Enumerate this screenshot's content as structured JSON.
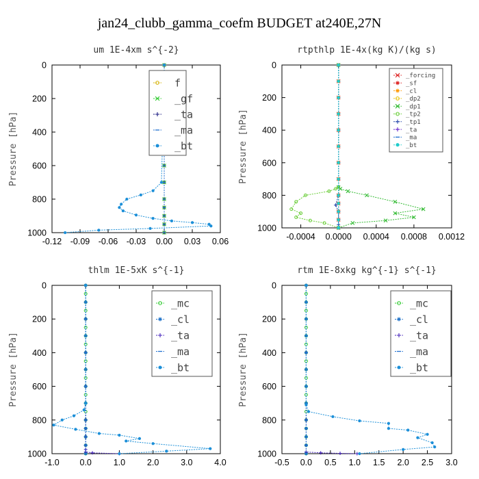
{
  "figure_title": "jan24_clubb_gamma_coefm  BUDGET at240E,27N",
  "chart_data": [
    {
      "type": "line",
      "title": "um   1E-4xm s^{-2}",
      "ylabel": "Pressure [hPa]",
      "xlim": [
        -0.12,
        0.06
      ],
      "xticks": [
        -0.12,
        -0.09,
        -0.06,
        -0.03,
        0.0,
        0.03,
        0.06
      ],
      "xtick_labels": [
        "-0.12",
        "-0.09",
        "-0.06",
        "-0.03",
        "0.00",
        "0.03",
        "0.06"
      ],
      "ylim": [
        1000,
        0
      ],
      "yticks": [
        0,
        200,
        400,
        600,
        800,
        1000
      ],
      "ytick_labels": [
        "0",
        "200",
        "400",
        "600",
        "800",
        "1000"
      ],
      "legend": {
        "placement": "top-right",
        "font": 15,
        "entries": [
          "f",
          "_gf",
          "_ta",
          "_ma",
          "_bt"
        ]
      },
      "series": [
        {
          "name": "f",
          "color": "#d4b000",
          "marker": "circle",
          "x": [
            0,
            0,
            0,
            0,
            0,
            0,
            0,
            0,
            0,
            0,
            0,
            0,
            0
          ],
          "y": [
            0,
            100,
            200,
            300,
            400,
            500,
            600,
            700,
            800,
            850,
            900,
            950,
            1000
          ]
        },
        {
          "name": "_gf",
          "color": "#33cc33",
          "marker": "x",
          "x": [
            0,
            0,
            0,
            0,
            0,
            0,
            0,
            0,
            0,
            0,
            0,
            0,
            0
          ],
          "y": [
            0,
            100,
            200,
            300,
            400,
            500,
            600,
            700,
            800,
            850,
            900,
            950,
            1000
          ]
        },
        {
          "name": "_ta",
          "color": "#1a1a80",
          "marker": "plus",
          "x": [
            0,
            0,
            0,
            0,
            0,
            0,
            0,
            0,
            0,
            0,
            0,
            0,
            0
          ],
          "y": [
            0,
            100,
            200,
            300,
            400,
            500,
            600,
            700,
            800,
            850,
            900,
            950,
            1000
          ]
        },
        {
          "name": "_ma",
          "color": "#1f6fd0",
          "marker": "dash",
          "x": [
            0,
            0,
            0,
            0,
            0,
            0,
            0,
            0,
            0,
            0,
            0,
            0,
            0
          ],
          "y": [
            0,
            100,
            200,
            300,
            400,
            500,
            600,
            700,
            800,
            850,
            900,
            950,
            1000
          ]
        },
        {
          "name": "_bt",
          "color": "#1c8fd8",
          "marker": "dot",
          "x": [
            0,
            0,
            0,
            -0.001,
            -0.002,
            -0.003,
            -0.012,
            -0.025,
            -0.04,
            -0.046,
            -0.048,
            -0.044,
            -0.03,
            -0.012,
            0.008,
            0.03,
            0.048,
            0.05,
            -0.015,
            -0.07,
            -0.106
          ],
          "y": [
            0,
            100,
            140,
            300,
            500,
            700,
            750,
            775,
            800,
            830,
            850,
            870,
            895,
            915,
            930,
            940,
            950,
            960,
            975,
            985,
            1000
          ]
        }
      ]
    },
    {
      "type": "line",
      "title": "rtpthlp   1E-4x(kg K)/(kg s)",
      "ylabel": "Pressure [hPa]",
      "xlim": [
        -0.0006,
        0.0012
      ],
      "xticks": [
        -0.0004,
        0.0,
        0.0004,
        0.0008,
        0.0012
      ],
      "xtick_labels": [
        "-0.0004",
        "0.0000",
        "0.0004",
        "0.0008",
        "0.0012"
      ],
      "ylim": [
        1000,
        0
      ],
      "yticks": [
        0,
        200,
        400,
        600,
        800,
        1000
      ],
      "ytick_labels": [
        "0",
        "200",
        "400",
        "600",
        "800",
        "1000"
      ],
      "legend": {
        "placement": "top-right",
        "font": 9,
        "entries": [
          "_forcing",
          "_sf",
          "_cl",
          "_dp2",
          "_dp1",
          "_tp2",
          "_tp1",
          "_ta",
          "_ma",
          "_bt"
        ]
      },
      "series": [
        {
          "name": "_forcing",
          "color": "#dd2222",
          "marker": "x",
          "x": [
            0,
            0,
            0,
            0,
            0,
            0,
            0,
            0,
            0,
            0,
            0,
            0,
            0
          ],
          "y": [
            0,
            100,
            200,
            300,
            400,
            500,
            600,
            700,
            800,
            850,
            900,
            950,
            1000
          ]
        },
        {
          "name": "_sf",
          "color": "#dd2222",
          "marker": "star",
          "x": [
            0,
            0,
            0,
            0,
            0,
            0,
            0,
            0,
            0,
            0,
            0,
            0,
            0
          ],
          "y": [
            0,
            100,
            200,
            300,
            400,
            500,
            600,
            700,
            800,
            850,
            900,
            950,
            1000
          ]
        },
        {
          "name": "_cl",
          "color": "#ff9900",
          "marker": "star",
          "x": [
            0,
            0,
            0,
            0,
            0,
            0,
            0,
            0,
            0,
            0,
            0,
            0,
            0
          ],
          "y": [
            0,
            100,
            200,
            300,
            400,
            500,
            600,
            700,
            800,
            850,
            900,
            950,
            1000
          ]
        },
        {
          "name": "_dp2",
          "color": "#e6c000",
          "marker": "circle",
          "x": [
            0,
            0,
            0,
            0,
            0,
            0,
            0,
            0,
            0,
            0,
            0,
            0,
            0
          ],
          "y": [
            0,
            100,
            200,
            300,
            400,
            500,
            600,
            700,
            800,
            850,
            900,
            950,
            1000
          ]
        },
        {
          "name": "_dp1",
          "color": "#33bb33",
          "marker": "x",
          "x": [
            0,
            0,
            2e-05,
            0.0001,
            0.0003,
            0.0006,
            0.0009,
            0.0006,
            0.0008,
            0.0005,
            0.00015,
            0.0
          ],
          "y": [
            0,
            750,
            760,
            775,
            800,
            840,
            885,
            910,
            935,
            955,
            970,
            1000
          ]
        },
        {
          "name": "_tp2",
          "color": "#66cc33",
          "marker": "circle",
          "x": [
            0,
            0,
            -3e-05,
            -0.0001,
            -0.00035,
            -0.00045,
            -0.0005,
            -0.0004,
            -0.00045,
            -0.0003,
            -0.00015,
            0.0
          ],
          "y": [
            0,
            750,
            760,
            775,
            800,
            840,
            885,
            910,
            935,
            955,
            970,
            1000
          ]
        },
        {
          "name": "_tp1",
          "color": "#2244aa",
          "marker": "plus",
          "x": [
            0,
            0,
            0,
            0,
            0,
            -3e-05,
            0,
            0,
            0,
            0
          ],
          "y": [
            0,
            200,
            400,
            600,
            800,
            860,
            900,
            950,
            980,
            1000
          ]
        },
        {
          "name": "_ta",
          "color": "#6622cc",
          "marker": "plus",
          "x": [
            0,
            0,
            0,
            0,
            0,
            0,
            0,
            0,
            0,
            0,
            0,
            0,
            0
          ],
          "y": [
            0,
            100,
            200,
            300,
            400,
            500,
            600,
            700,
            800,
            850,
            900,
            950,
            1000
          ]
        },
        {
          "name": "_ma",
          "color": "#1f6fd0",
          "marker": "dash",
          "x": [
            0,
            0,
            0,
            0,
            0,
            0,
            0,
            0,
            0,
            0,
            0,
            0,
            0
          ],
          "y": [
            0,
            100,
            200,
            300,
            400,
            500,
            600,
            700,
            800,
            850,
            900,
            950,
            1000
          ]
        },
        {
          "name": "_bt",
          "color": "#22cccc",
          "marker": "dot",
          "x": [
            0,
            0,
            0,
            0,
            0,
            0,
            0,
            0,
            0,
            0,
            0,
            0,
            0
          ],
          "y": [
            0,
            100,
            200,
            300,
            400,
            500,
            600,
            700,
            800,
            850,
            900,
            950,
            1000
          ]
        }
      ]
    },
    {
      "type": "line",
      "title": "thlm   1E-5xK s^{-1}",
      "ylabel": "Pressure [hPa]",
      "xlim": [
        -1.0,
        4.0
      ],
      "xticks": [
        -1.0,
        0.0,
        1.0,
        2.0,
        3.0,
        4.0
      ],
      "xtick_labels": [
        "-1.0",
        "0.0",
        "1.0",
        "2.0",
        "3.0",
        "4.0"
      ],
      "ylim": [
        1000,
        0
      ],
      "yticks": [
        0,
        200,
        400,
        600,
        800,
        1000
      ],
      "ytick_labels": [
        "0",
        "200",
        "400",
        "600",
        "800",
        "1000"
      ],
      "legend": {
        "placement": "top-right",
        "font": 15,
        "entries": [
          "_mc",
          "_cl",
          "_ta",
          "_ma",
          "_bt"
        ]
      },
      "series": [
        {
          "name": "_mc",
          "color": "#33cc33",
          "marker": "circle",
          "x": [
            0,
            0,
            0,
            0,
            0,
            0,
            0,
            0,
            0,
            0,
            0,
            0,
            0,
            0,
            0,
            0,
            0,
            0,
            0,
            0,
            0
          ],
          "y": [
            0,
            50,
            100,
            150,
            200,
            250,
            300,
            350,
            400,
            450,
            500,
            550,
            600,
            650,
            700,
            750,
            800,
            850,
            900,
            950,
            1000
          ]
        },
        {
          "name": "_cl",
          "color": "#1c70c8",
          "marker": "star",
          "x": [
            0,
            0,
            0,
            0,
            0,
            0,
            0,
            0,
            0,
            0,
            0,
            0,
            0
          ],
          "y": [
            0,
            100,
            200,
            300,
            400,
            500,
            600,
            700,
            800,
            850,
            900,
            950,
            1000
          ]
        },
        {
          "name": "_ta",
          "color": "#4422bb",
          "marker": "plus",
          "x": [
            0,
            0,
            0,
            0,
            0,
            0,
            0,
            0,
            0,
            0,
            0.2,
            1.0
          ],
          "y": [
            0,
            200,
            400,
            600,
            800,
            850,
            900,
            950,
            975,
            990,
            995,
            1000
          ]
        },
        {
          "name": "_ma",
          "color": "#1f6fd0",
          "marker": "dash",
          "x": [
            0,
            0,
            0,
            0,
            0,
            0,
            0,
            0,
            0,
            0,
            0,
            0,
            0
          ],
          "y": [
            0,
            100,
            200,
            300,
            400,
            500,
            600,
            700,
            800,
            850,
            900,
            950,
            1000
          ]
        },
        {
          "name": "_bt",
          "color": "#1c8fd8",
          "marker": "dot",
          "x": [
            0,
            0,
            -0.05,
            -0.35,
            -0.7,
            -0.95,
            -0.3,
            0.4,
            1.0,
            1.6,
            1.2,
            2.0,
            3.7,
            2.4,
            1.0
          ],
          "y": [
            0,
            700,
            740,
            775,
            800,
            830,
            855,
            880,
            890,
            910,
            925,
            940,
            970,
            985,
            1000
          ]
        }
      ]
    },
    {
      "type": "line",
      "title": "rtm   1E-8xkg kg^{-1} s^{-1}",
      "ylabel": "Pressure [hPa]",
      "xlim": [
        -0.5,
        3.0
      ],
      "xticks": [
        -0.5,
        0.0,
        0.5,
        1.0,
        1.5,
        2.0,
        2.5,
        3.0
      ],
      "xtick_labels": [
        "-0.5",
        "0.0",
        "0.5",
        "1.0",
        "1.5",
        "2.0",
        "2.5",
        "3.0"
      ],
      "ylim": [
        1000,
        0
      ],
      "yticks": [
        0,
        200,
        400,
        600,
        800,
        1000
      ],
      "ytick_labels": [
        "0",
        "200",
        "400",
        "600",
        "800",
        "1000"
      ],
      "legend": {
        "placement": "top-right",
        "font": 15,
        "entries": [
          "_mc",
          "_cl",
          "_ta",
          "_ma",
          "_bt"
        ]
      },
      "series": [
        {
          "name": "_mc",
          "color": "#33cc33",
          "marker": "circle",
          "x": [
            0,
            0,
            0,
            0,
            0,
            0,
            0,
            0,
            0,
            0,
            0,
            0,
            0,
            0,
            0,
            0,
            0,
            0,
            0,
            0,
            0
          ],
          "y": [
            0,
            50,
            100,
            150,
            200,
            250,
            300,
            350,
            400,
            450,
            500,
            550,
            600,
            650,
            700,
            750,
            800,
            850,
            900,
            950,
            1000
          ]
        },
        {
          "name": "_cl",
          "color": "#1c70c8",
          "marker": "star",
          "x": [
            0,
            0,
            0,
            0,
            0,
            0,
            0,
            0,
            0,
            0,
            0,
            0,
            0
          ],
          "y": [
            0,
            100,
            200,
            300,
            400,
            500,
            600,
            700,
            800,
            850,
            900,
            950,
            1000
          ]
        },
        {
          "name": "_ta",
          "color": "#4422bb",
          "marker": "plus",
          "x": [
            0,
            0,
            0,
            0,
            0,
            0.3,
            0.7,
            1.05
          ],
          "y": [
            0,
            400,
            800,
            950,
            990,
            995,
            998,
            1000
          ]
        },
        {
          "name": "_ma",
          "color": "#1f6fd0",
          "marker": "dash",
          "x": [
            0,
            0,
            0,
            0,
            0,
            0,
            0,
            0,
            0,
            0,
            0,
            0,
            0
          ],
          "y": [
            0,
            100,
            200,
            300,
            400,
            500,
            600,
            700,
            800,
            850,
            900,
            950,
            1000
          ]
        },
        {
          "name": "_bt",
          "color": "#1c8fd8",
          "marker": "dot",
          "x": [
            0,
            0,
            0.05,
            0.55,
            1.1,
            1.7,
            1.7,
            2.1,
            2.5,
            2.3,
            2.6,
            2.65,
            2.0,
            1.1
          ],
          "y": [
            0,
            710,
            750,
            780,
            805,
            820,
            850,
            860,
            885,
            905,
            935,
            960,
            975,
            1000
          ]
        }
      ]
    }
  ]
}
